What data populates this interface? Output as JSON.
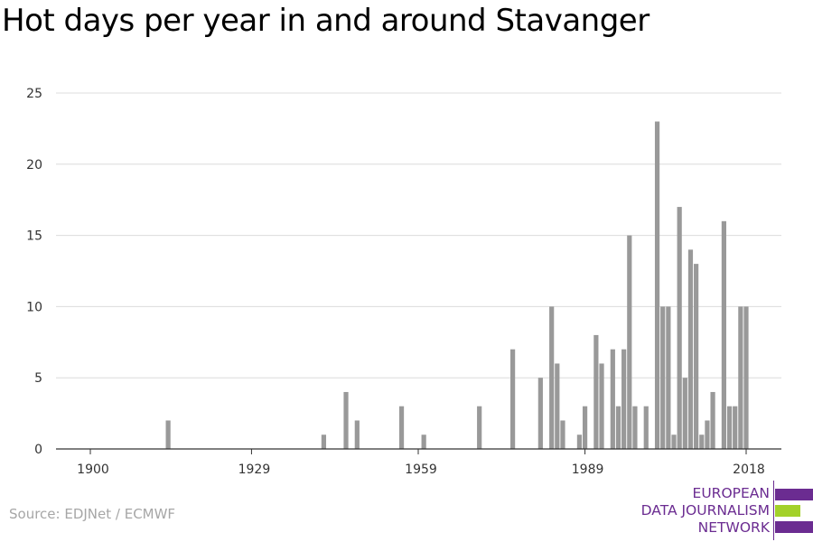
{
  "chart_data": {
    "type": "bar",
    "title": "Hot days per year in and around Stavanger",
    "xlabel": "",
    "ylabel": "",
    "ylim": [
      0,
      25
    ],
    "xlim": [
      1900,
      2018
    ],
    "y_ticks": [
      0,
      5,
      10,
      15,
      20,
      25
    ],
    "x_ticks": [
      1900,
      1929,
      1959,
      1989,
      2018
    ],
    "grid": true,
    "bar_color": "#999999",
    "years": [
      1914,
      1942,
      1946,
      1948,
      1956,
      1960,
      1970,
      1976,
      1981,
      1983,
      1984,
      1985,
      1988,
      1989,
      1991,
      1992,
      1994,
      1995,
      1996,
      1997,
      1998,
      2000,
      2002,
      2003,
      2004,
      2005,
      2006,
      2007,
      2008,
      2009,
      2010,
      2011,
      2012,
      2014,
      2015,
      2016,
      2017,
      2018
    ],
    "values": [
      2,
      1,
      4,
      2,
      3,
      1,
      3,
      7,
      5,
      10,
      6,
      2,
      1,
      3,
      8,
      6,
      7,
      3,
      7,
      15,
      3,
      3,
      23,
      10,
      10,
      1,
      17,
      5,
      14,
      13,
      1,
      2,
      4,
      16,
      3,
      3,
      10,
      10
    ]
  },
  "source": "Source: EDJNet / ECMWF",
  "logo": {
    "lines": [
      "EUROPEAN",
      "DATA JOURNALISM",
      "NETWORK"
    ],
    "colors": [
      "#6b2c91",
      "#a3d12a",
      "#6b2c91"
    ]
  }
}
